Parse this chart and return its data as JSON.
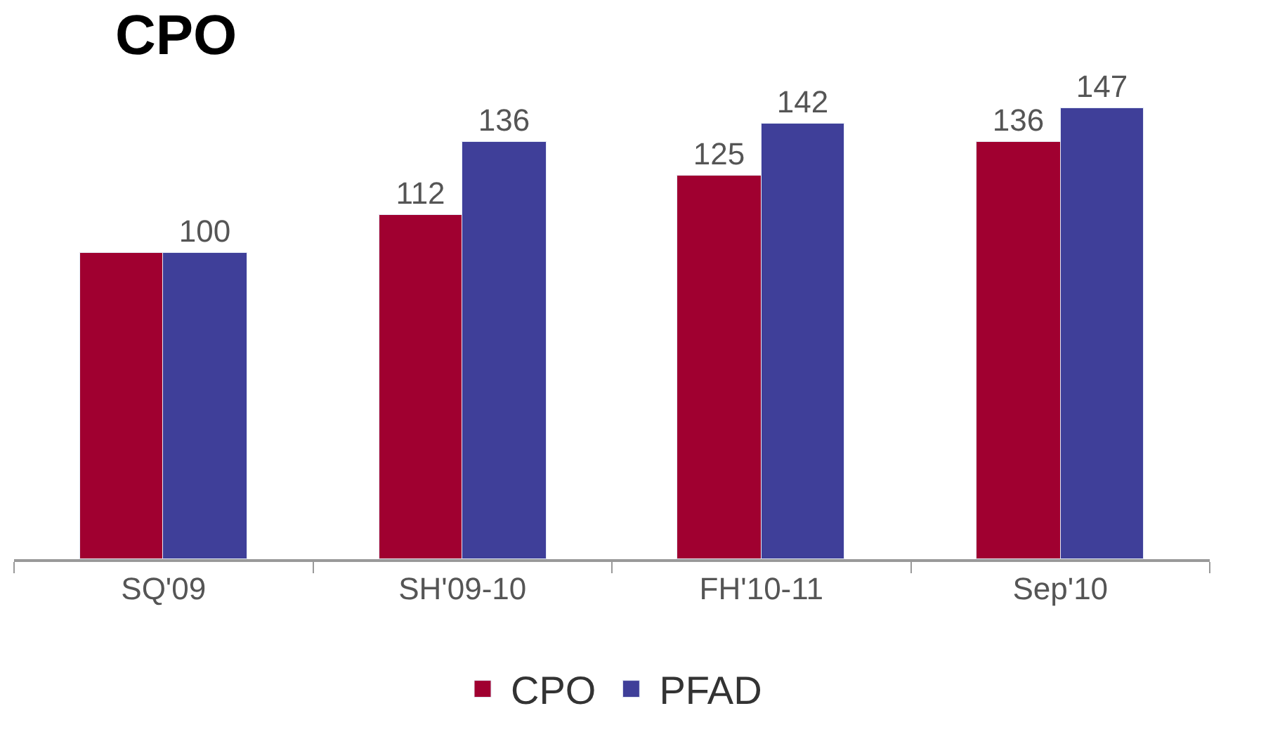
{
  "chart_data": {
    "type": "bar",
    "title": "CPO",
    "categories": [
      "SQ'09",
      "SH'09-10",
      "FH'10-11",
      "Sep'10"
    ],
    "series": [
      {
        "name": "CPO",
        "color": "#a00030",
        "values": [
          100,
          112,
          125,
          136
        ],
        "value_labels": [
          null,
          "112",
          "125",
          "136"
        ]
      },
      {
        "name": "PFAD",
        "color": "#3f3f99",
        "values": [
          100,
          136,
          142,
          147
        ],
        "value_labels": [
          "100",
          "136",
          "142",
          "147"
        ]
      }
    ],
    "tick_labels": "x",
    "legend": "bottom"
  }
}
